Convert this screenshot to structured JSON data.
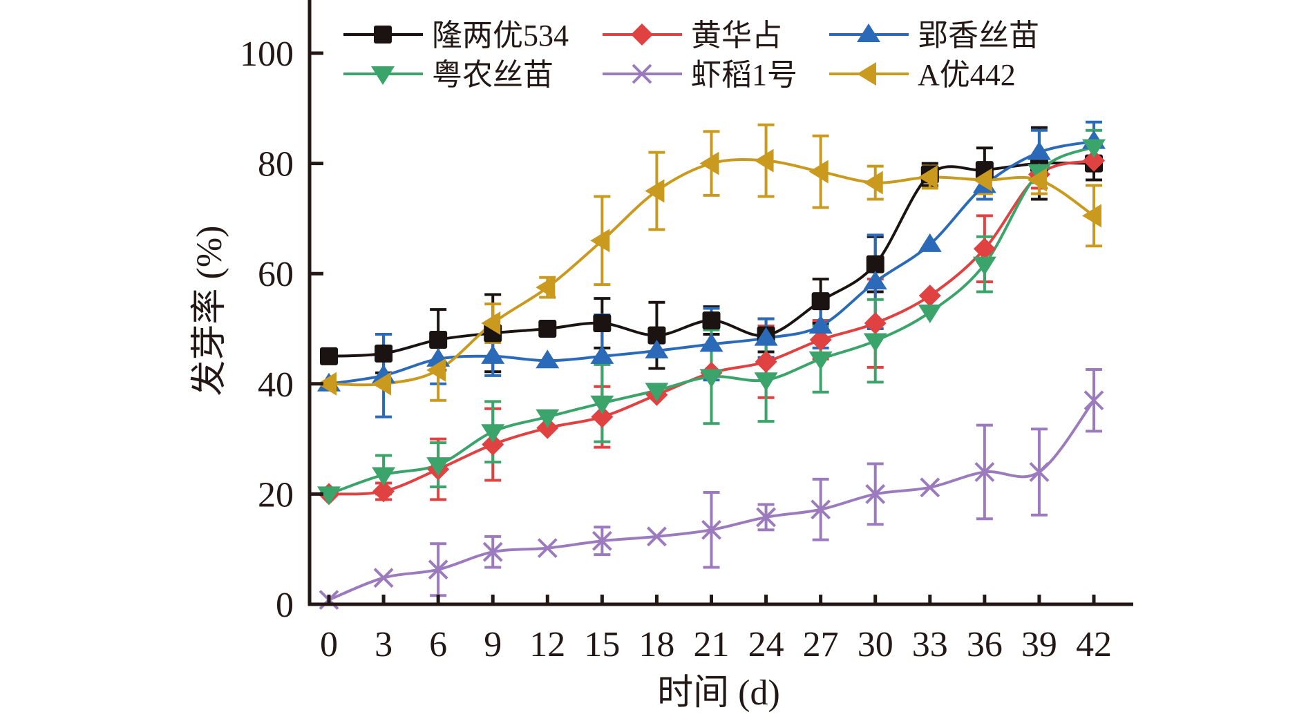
{
  "chart_data": {
    "type": "line",
    "title": "",
    "xlabel": "时间 (d)",
    "ylabel": "发芽率 (%)",
    "x": [
      0,
      3,
      6,
      9,
      12,
      15,
      18,
      21,
      24,
      27,
      30,
      33,
      36,
      39,
      42
    ],
    "xticks": [
      "0",
      "3",
      "6",
      "9",
      "12",
      "15",
      "18",
      "21",
      "24",
      "27",
      "30",
      "33",
      "36",
      "39",
      "42"
    ],
    "yticks": [
      "0",
      "20",
      "40",
      "60",
      "80",
      "100"
    ],
    "xlim": [
      0,
      42
    ],
    "ylim": [
      0,
      100
    ],
    "grid": false,
    "legend_position": "top",
    "series": [
      {
        "name": "隆两优534",
        "color": "#1a1311",
        "marker": "square",
        "values": [
          45,
          45.5,
          48,
          49.2,
          50,
          51,
          48.8,
          51.5,
          48.8,
          55,
          61.7,
          78,
          78.8,
          80,
          80
        ],
        "errors": [
          0.5,
          3.5,
          5.5,
          7,
          1,
          4.5,
          6,
          2.5,
          3,
          4,
          5,
          2,
          4,
          6.5,
          3
        ]
      },
      {
        "name": "黄华占",
        "color": "#e04141",
        "marker": "diamond",
        "values": [
          20,
          20.5,
          24.5,
          29,
          32,
          34,
          38,
          42,
          44,
          48,
          51,
          56,
          64.5,
          78,
          80.5
        ],
        "errors": [
          0.5,
          1.5,
          5.5,
          6.5,
          0.5,
          5.5,
          0.5,
          1,
          6.5,
          3.5,
          8,
          0.5,
          6,
          2.5,
          1
        ]
      },
      {
        "name": "郢香丝苗",
        "color": "#2a6ab8",
        "marker": "triangle-up",
        "values": [
          40,
          41.5,
          44.5,
          45,
          44.2,
          45,
          46,
          47.2,
          48.3,
          50.5,
          58.5,
          65.3,
          76,
          82,
          84
        ],
        "errors": [
          0.5,
          7.5,
          4.5,
          3.5,
          0.5,
          7.5,
          0.5,
          6.5,
          3.5,
          4,
          8.5,
          0.5,
          2.5,
          4,
          3.5
        ]
      },
      {
        "name": "粤农丝苗",
        "color": "#3aa46a",
        "marker": "triangle-down",
        "values": [
          20,
          23.5,
          25.3,
          31.3,
          34,
          36.5,
          38.8,
          41.3,
          40.7,
          44.5,
          47.8,
          53,
          61.7,
          78.5,
          83
        ],
        "errors": [
          0.5,
          3.5,
          4,
          5.5,
          0.5,
          7,
          0.5,
          8.5,
          7.5,
          6,
          7.5,
          0.5,
          5,
          2,
          3
        ]
      },
      {
        "name": "虾稻1号",
        "color": "#9b7bbd",
        "marker": "x",
        "values": [
          0.8,
          4.8,
          6.3,
          9.5,
          10.2,
          11.5,
          12.3,
          13.5,
          15.8,
          17.2,
          20,
          21.2,
          24,
          24,
          37
        ],
        "errors": [
          0.5,
          0.5,
          4.7,
          2.8,
          0.5,
          2.5,
          0.5,
          6.8,
          2.3,
          5.5,
          5.5,
          0.5,
          8.5,
          7.8,
          5.6
        ]
      },
      {
        "name": "A优442",
        "color": "#c99a1d",
        "marker": "triangle-left",
        "values": [
          40,
          40,
          42.5,
          51,
          57.5,
          66,
          75,
          80,
          80.5,
          78.5,
          76.5,
          77.5,
          77,
          77,
          70.5
        ],
        "errors": [
          0.5,
          0.5,
          5.5,
          3.5,
          1.8,
          8,
          7,
          5.8,
          6.5,
          6.5,
          3,
          2,
          2.5,
          2.5,
          5.5
        ]
      }
    ]
  }
}
